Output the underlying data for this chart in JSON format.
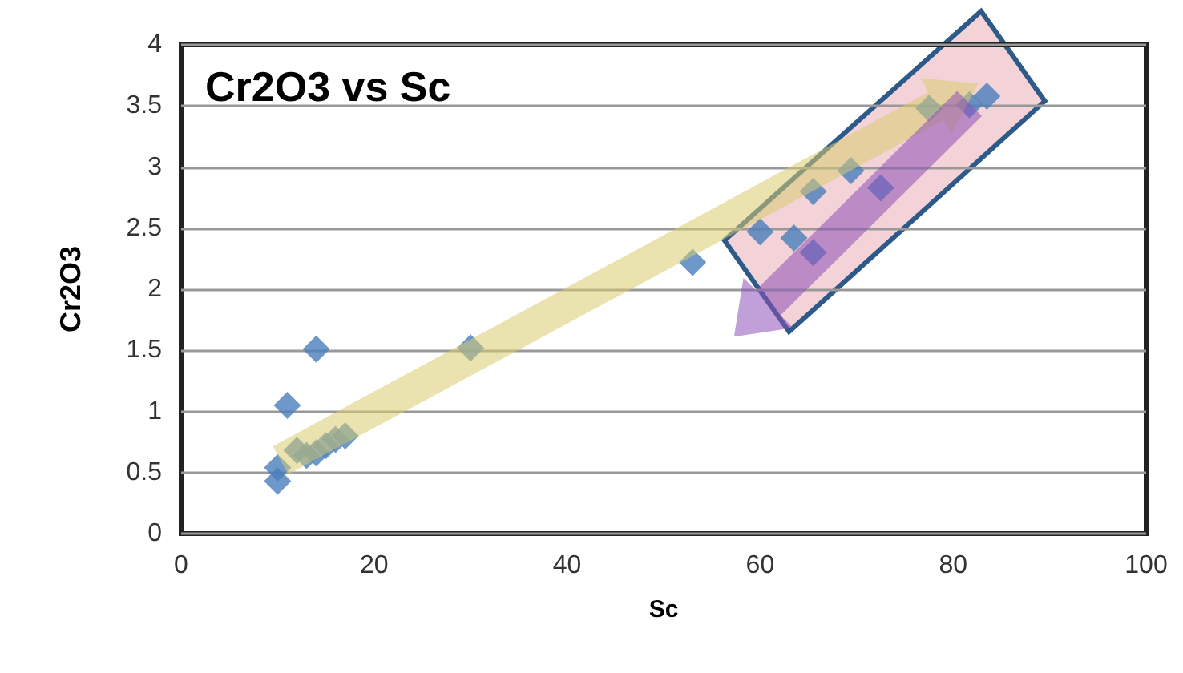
{
  "chart_data": {
    "type": "scatter",
    "title": "Cr2O3 vs Sc",
    "xlabel": "Sc",
    "ylabel": "Cr2O3",
    "x": [
      10,
      10,
      11,
      14,
      12,
      13,
      14,
      15,
      16,
      17,
      30,
      53,
      60,
      63.5,
      65.5,
      65.5,
      69.4,
      72.5,
      77.5,
      81.7,
      83.5
    ],
    "values": [
      0.43,
      0.54,
      1.05,
      1.51,
      0.68,
      0.64,
      0.66,
      0.72,
      0.77,
      0.8,
      1.52,
      2.22,
      2.47,
      2.42,
      2.8,
      2.3,
      2.97,
      2.83,
      3.48,
      3.51,
      3.58
    ],
    "color": "#4a7ebb",
    "marker": "diamond",
    "xlim": [
      0,
      100
    ],
    "xticks": [
      0,
      20,
      40,
      60,
      80,
      100
    ],
    "ylim": [
      0,
      4
    ],
    "yticks": [
      0,
      0.5,
      1,
      1.5,
      2,
      2.5,
      3,
      3.5,
      4
    ],
    "grid": "y"
  }
}
